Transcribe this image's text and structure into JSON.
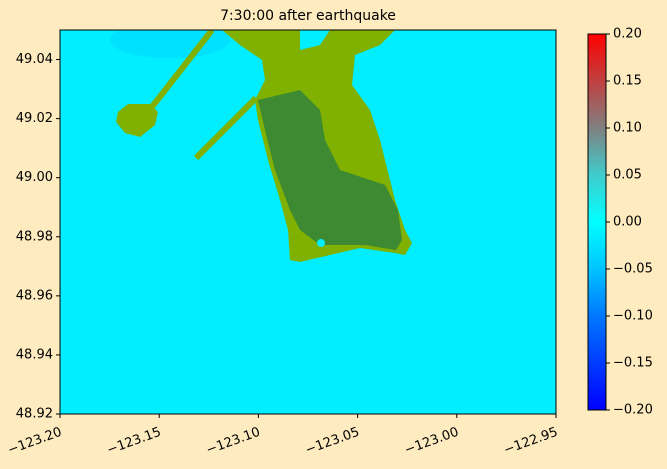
{
  "chart_data": {
    "type": "heatmap",
    "title": "7:30:00 after earthquake",
    "xlim": [
      -123.2,
      -122.95
    ],
    "xticks": [
      {
        "value": -123.2,
        "label": "−123.20"
      },
      {
        "value": -123.15,
        "label": "−123.15"
      },
      {
        "value": -123.1,
        "label": "−123.10"
      },
      {
        "value": -123.05,
        "label": "−123.05"
      },
      {
        "value": -123.0,
        "label": "−123.00"
      },
      {
        "value": -122.95,
        "label": "−122.95"
      }
    ],
    "ylim": [
      48.92,
      49.05
    ],
    "yticks": [
      {
        "value": 48.92,
        "label": "48.92"
      },
      {
        "value": 48.94,
        "label": "48.94"
      },
      {
        "value": 48.96,
        "label": "48.96"
      },
      {
        "value": 48.98,
        "label": "48.98"
      },
      {
        "value": 49.0,
        "label": "49.00"
      },
      {
        "value": 49.02,
        "label": "49.02"
      },
      {
        "value": 49.04,
        "label": "49.04"
      }
    ],
    "clim": [
      -0.2,
      0.2
    ],
    "cticks": [
      {
        "value": -0.2,
        "label": "−0.20"
      },
      {
        "value": -0.15,
        "label": "−0.15"
      },
      {
        "value": -0.1,
        "label": "−0.10"
      },
      {
        "value": -0.05,
        "label": "−0.05"
      },
      {
        "value": 0,
        "label": "0.00"
      },
      {
        "value": 0.05,
        "label": "0.05"
      },
      {
        "value": 0.1,
        "label": "0.10"
      },
      {
        "value": 0.15,
        "label": "0.15"
      },
      {
        "value": 0.2,
        "label": "0.20"
      }
    ]
  }
}
